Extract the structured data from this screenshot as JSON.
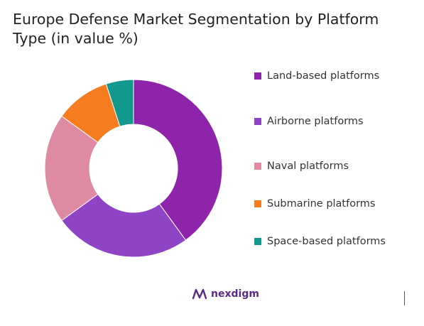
{
  "title": "Europe Defense Market Segmentation by Platform Type (in value %)",
  "brand": {
    "name": "nexdigm",
    "icon": "nexdigm-logo-icon",
    "color": "#5b2a86"
  },
  "chart_data": {
    "type": "pie",
    "donut": true,
    "title": "Europe Defense Market Segmentation by Platform Type (in value %)",
    "legend_position": "right",
    "categories": [
      "Land-based platforms",
      "Airborne platforms",
      "Naval platforms",
      "Submarine platforms",
      "Space-based platforms"
    ],
    "values": [
      40,
      25,
      20,
      10,
      5
    ],
    "colors": [
      "#8e24aa",
      "#8e44c4",
      "#df8aa3",
      "#f57c1f",
      "#12988c"
    ]
  }
}
